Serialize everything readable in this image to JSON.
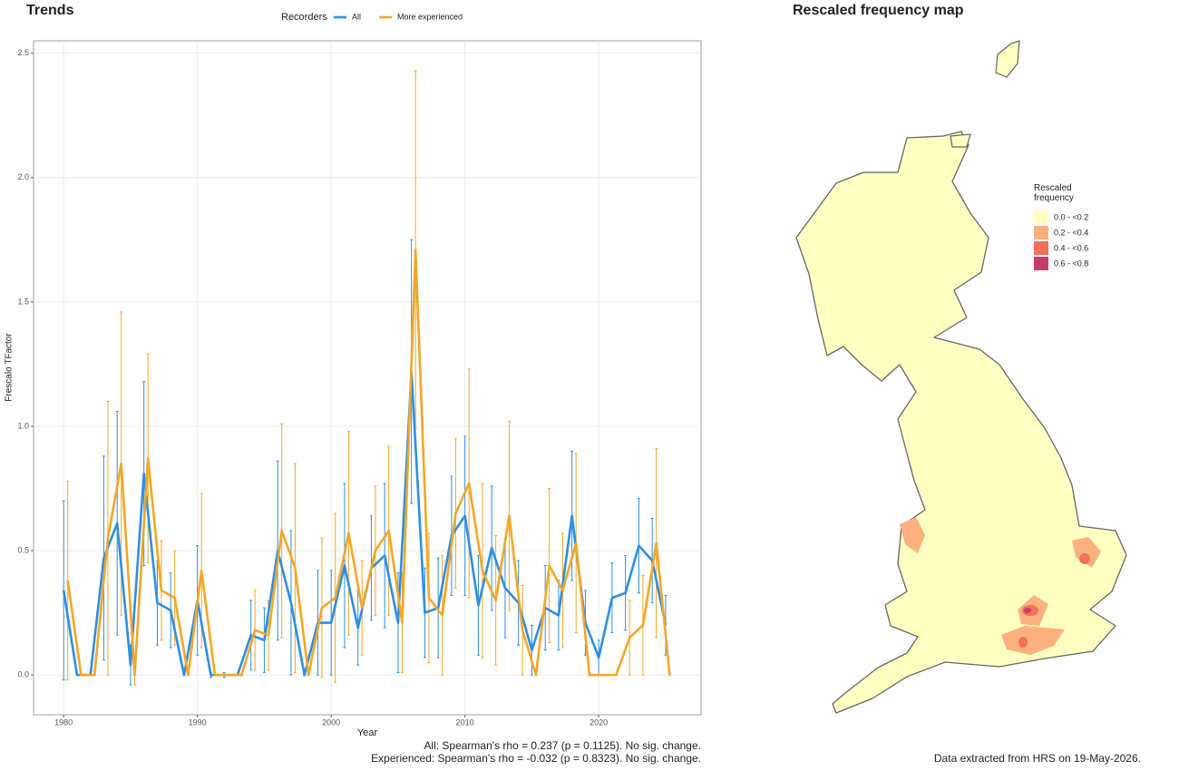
{
  "chart_data": {
    "type": "line",
    "title": "Trends",
    "legend_title": "Recorders",
    "x_label": "Year",
    "y_label": "Frescalo TFactor",
    "x": [
      1980,
      1981,
      1982,
      1983,
      1984,
      1985,
      1986,
      1987,
      1988,
      1989,
      1990,
      1991,
      1992,
      1993,
      1994,
      1995,
      1996,
      1997,
      1998,
      1999,
      2000,
      2001,
      2002,
      2003,
      2004,
      2005,
      2006,
      2007,
      2008,
      2009,
      2010,
      2011,
      2012,
      2013,
      2014,
      2015,
      2016,
      2017,
      2018,
      2019,
      2020,
      2021,
      2022,
      2023,
      2024,
      2025
    ],
    "series": [
      {
        "name": "All",
        "color": "#2b8fe6",
        "values": [
          0.34,
          0,
          0,
          0.47,
          0.61,
          0.04,
          0.81,
          0.29,
          0.26,
          0,
          0.3,
          0,
          0,
          0,
          0.16,
          0.14,
          0.5,
          0.29,
          0,
          0.21,
          0.21,
          0.44,
          0.19,
          0.43,
          0.48,
          0.21,
          1.22,
          0.25,
          0.27,
          0.56,
          0.64,
          0.28,
          0.51,
          0.35,
          0.29,
          0.1,
          0.27,
          0.24,
          0.64,
          0.21,
          0.07,
          0.31,
          0.33,
          0.52,
          0.46,
          0.2
        ],
        "errors": [
          0.36,
          0,
          0,
          0.41,
          0.45,
          0.08,
          0.37,
          0.17,
          0.15,
          0,
          0.22,
          0.01,
          0.01,
          0,
          0.14,
          0.13,
          0.36,
          0.29,
          0,
          0.21,
          0.21,
          0.33,
          0.15,
          0.21,
          0.29,
          0.2,
          0.53,
          0.18,
          0.2,
          0.24,
          0.32,
          0.2,
          0.25,
          0.2,
          0.17,
          0.1,
          0.17,
          0.14,
          0.26,
          0.13,
          0.07,
          0.14,
          0.15,
          0.19,
          0.17,
          0.12
        ]
      },
      {
        "name": "More experienced",
        "color": "#f5a623",
        "values": [
          0.38,
          0,
          0,
          0.55,
          0.85,
          0,
          0.87,
          0.34,
          0.31,
          0,
          0.42,
          0,
          0,
          0,
          0.18,
          0.16,
          0.58,
          0.43,
          0,
          0.27,
          0.31,
          0.57,
          0.27,
          0.5,
          0.58,
          0.21,
          1.71,
          0.31,
          0.24,
          0.65,
          0.77,
          0.42,
          0.3,
          0.64,
          0.18,
          0,
          0.44,
          0.34,
          0.53,
          0,
          0,
          0,
          0.15,
          0.2,
          0.53,
          0
        ],
        "errors": [
          0.4,
          0,
          0,
          0.55,
          0.61,
          0.04,
          0.42,
          0.2,
          0.19,
          0,
          0.31,
          0,
          0,
          0,
          0.16,
          0.14,
          0.43,
          0.42,
          0,
          0.28,
          0.34,
          0.41,
          0.19,
          0.26,
          0.34,
          0.2,
          0.72,
          0.26,
          0.24,
          0.3,
          0.46,
          0.35,
          0.26,
          0.38,
          0.18,
          0,
          0.31,
          0.23,
          0.36,
          0,
          0,
          0,
          0.15,
          0.2,
          0.38,
          0
        ]
      }
    ],
    "xlim": [
      1977.75,
      2027.65
    ],
    "xticks": [
      1980,
      1990,
      2000,
      2010,
      2020
    ],
    "ylim": [
      -0.16,
      2.55
    ],
    "yticks": [
      {
        "value": 0,
        "label": "0.0"
      },
      0.5,
      {
        "value": 1,
        "label": "1.0"
      },
      1.5,
      {
        "value": 2,
        "label": "2.0"
      },
      2.5
    ],
    "grid": true,
    "notes": [
      "All: Spearman's rho = 0.237 (p = 0.1125). No sig. change.",
      "Experienced: Spearman's rho = -0.032 (p = 0.8323). No sig. change."
    ]
  },
  "map": {
    "title": "Rescaled frequency map",
    "legend_title": "Rescaled frequency",
    "legend": [
      {
        "label": "0.0 - <0.2",
        "color": "#ffffc2"
      },
      {
        "label": "0.2 - <0.4",
        "color": "#fbb07e"
      },
      {
        "label": "0.4 - <0.6",
        "color": "#f2705c"
      },
      {
        "label": "0.6 - <0.8",
        "color": "#c93c6a"
      }
    ],
    "footer": "Data extracted from HRS on 19-May-2026."
  }
}
